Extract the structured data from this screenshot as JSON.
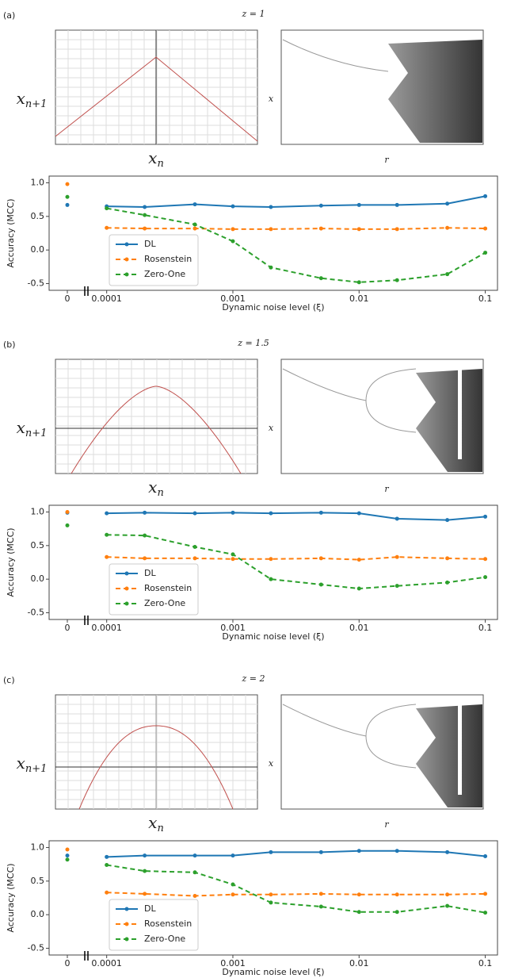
{
  "panels": [
    {
      "label": "(a)",
      "title": "z = 1",
      "map": {
        "ylabel": {
          "base": "x",
          "sub": "n+1"
        },
        "xlabel": {
          "base": "x",
          "sub": "n"
        }
      },
      "bifurcation": {
        "ylabel": "x",
        "xlabel": "r"
      }
    },
    {
      "label": "(b)",
      "title": "z = 1.5",
      "map": {
        "ylabel": {
          "base": "x",
          "sub": "n+1"
        },
        "xlabel": {
          "base": "x",
          "sub": "n"
        }
      },
      "bifurcation": {
        "ylabel": "x",
        "xlabel": "r"
      }
    },
    {
      "label": "(c)",
      "title": "z = 2",
      "map": {
        "ylabel": {
          "base": "x",
          "sub": "n+1"
        },
        "xlabel": {
          "base": "x",
          "sub": "n"
        }
      },
      "bifurcation": {
        "ylabel": "x",
        "xlabel": "r"
      }
    }
  ],
  "chart_data": [
    {
      "type": "line",
      "ylabel": "Accuracy (MCC)",
      "xlabel": "Dynamic noise level (ξ)",
      "xscale": "log",
      "x": [
        0.0001,
        0.0002,
        0.0005,
        0.001,
        0.002,
        0.005,
        0.01,
        0.02,
        0.05,
        0.1
      ],
      "xlim": [
        7e-05,
        0.125
      ],
      "xticks": [
        0.0001,
        0.001,
        0.01,
        0.1
      ],
      "zero_tick": 0,
      "ylim": [
        -0.6,
        1.1
      ],
      "yticks": [
        -0.5,
        {
          "value": 0,
          "label": "0.0"
        },
        0.5,
        {
          "value": 1,
          "label": "1.0"
        }
      ],
      "grid": false,
      "legend": "lower left",
      "series": [
        {
          "name": "DL",
          "color": "#1f77b4",
          "linestyle": "solid",
          "zero_value": 0.67,
          "values": [
            0.65,
            0.64,
            0.68,
            0.65,
            0.64,
            0.66,
            0.67,
            0.67,
            0.69,
            0.8
          ]
        },
        {
          "name": "Rosenstein",
          "color": "#ff7f0e",
          "linestyle": "dashed",
          "zero_value": 0.98,
          "values": [
            0.33,
            0.32,
            0.32,
            0.31,
            0.31,
            0.32,
            0.31,
            0.31,
            0.33,
            0.32
          ]
        },
        {
          "name": "Zero-One",
          "color": "#2ca02c",
          "linestyle": "dashed",
          "zero_value": 0.79,
          "values": [
            0.62,
            0.52,
            0.38,
            0.13,
            -0.26,
            -0.42,
            -0.48,
            -0.45,
            -0.36,
            -0.04
          ]
        }
      ]
    },
    {
      "type": "line",
      "ylabel": "Accuracy (MCC)",
      "xlabel": "Dynamic noise level (ξ)",
      "xscale": "log",
      "x": [
        0.0001,
        0.0002,
        0.0005,
        0.001,
        0.002,
        0.005,
        0.01,
        0.02,
        0.05,
        0.1
      ],
      "xlim": [
        7e-05,
        0.125
      ],
      "xticks": [
        0.0001,
        0.001,
        0.01,
        0.1
      ],
      "zero_tick": 0,
      "ylim": [
        -0.6,
        1.1
      ],
      "yticks": [
        -0.5,
        {
          "value": 0,
          "label": "0.0"
        },
        0.5,
        {
          "value": 1,
          "label": "1.0"
        }
      ],
      "grid": false,
      "legend": "lower left",
      "series": [
        {
          "name": "DL",
          "color": "#1f77b4",
          "linestyle": "solid",
          "zero_value": 0.99,
          "values": [
            0.98,
            0.99,
            0.98,
            0.99,
            0.98,
            0.99,
            0.98,
            0.9,
            0.88,
            0.93
          ]
        },
        {
          "name": "Rosenstein",
          "color": "#ff7f0e",
          "linestyle": "dashed",
          "zero_value": 1.0,
          "values": [
            0.33,
            0.31,
            0.31,
            0.3,
            0.3,
            0.31,
            0.29,
            0.33,
            0.31,
            0.3
          ]
        },
        {
          "name": "Zero-One",
          "color": "#2ca02c",
          "linestyle": "dashed",
          "zero_value": 0.8,
          "values": [
            0.66,
            0.65,
            0.48,
            0.37,
            0.0,
            -0.08,
            -0.14,
            -0.1,
            -0.05,
            0.03
          ]
        }
      ]
    },
    {
      "type": "line",
      "ylabel": "Accuracy (MCC)",
      "xlabel": "Dynamic noise level (ξ)",
      "xscale": "log",
      "x": [
        0.0001,
        0.0002,
        0.0005,
        0.001,
        0.002,
        0.005,
        0.01,
        0.02,
        0.05,
        0.1
      ],
      "xlim": [
        7e-05,
        0.125
      ],
      "xticks": [
        0.0001,
        0.001,
        0.01,
        0.1
      ],
      "zero_tick": 0,
      "ylim": [
        -0.6,
        1.1
      ],
      "yticks": [
        -0.5,
        {
          "value": 0,
          "label": "0.0"
        },
        0.5,
        {
          "value": 1,
          "label": "1.0"
        }
      ],
      "grid": false,
      "legend": "lower left",
      "series": [
        {
          "name": "DL",
          "color": "#1f77b4",
          "linestyle": "solid",
          "zero_value": 0.88,
          "values": [
            0.86,
            0.88,
            0.88,
            0.88,
            0.93,
            0.93,
            0.95,
            0.95,
            0.93,
            0.87
          ]
        },
        {
          "name": "Rosenstein",
          "color": "#ff7f0e",
          "linestyle": "dashed",
          "zero_value": 0.97,
          "values": [
            0.33,
            0.31,
            0.28,
            0.3,
            0.3,
            0.31,
            0.3,
            0.3,
            0.3,
            0.31
          ]
        },
        {
          "name": "Zero-One",
          "color": "#2ca02c",
          "linestyle": "dashed",
          "zero_value": 0.82,
          "values": [
            0.74,
            0.65,
            0.63,
            0.45,
            0.18,
            0.12,
            0.04,
            0.04,
            0.13,
            0.03
          ]
        }
      ]
    }
  ]
}
